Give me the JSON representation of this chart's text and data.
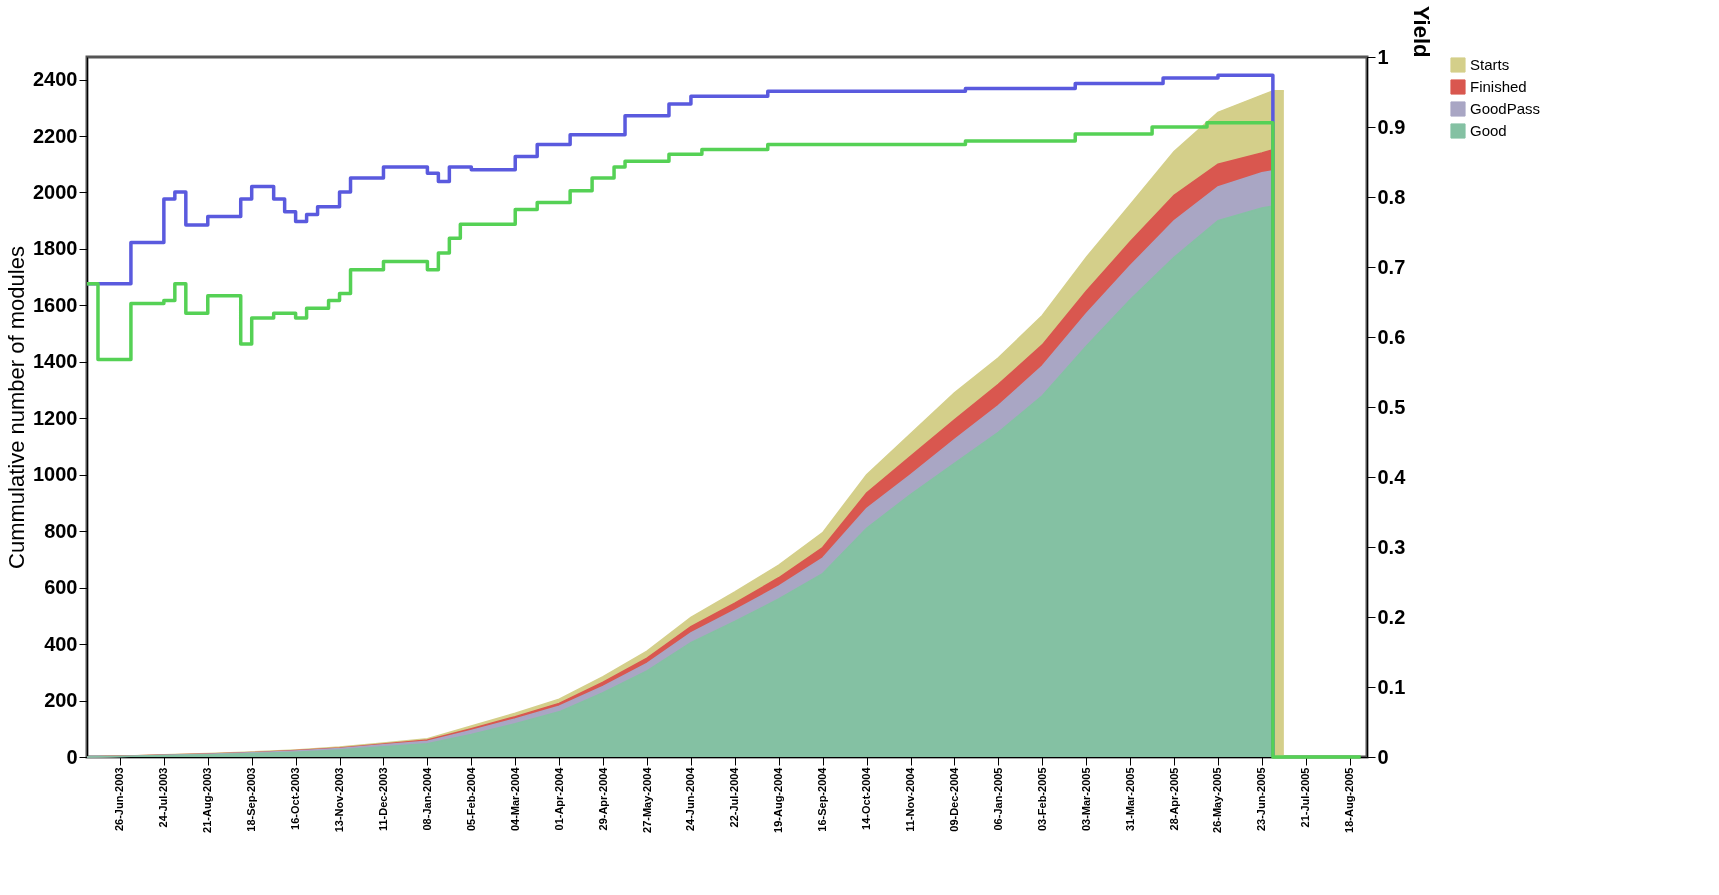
{
  "chart_data": {
    "type": "area",
    "ylabel": "Cummulative number of modules",
    "y2label": "Yield",
    "x": [
      "2003-06-05",
      "2003-06-26",
      "2003-07-24",
      "2003-08-21",
      "2003-09-18",
      "2003-10-16",
      "2003-11-13",
      "2003-12-11",
      "2004-01-08",
      "2004-02-05",
      "2004-03-04",
      "2004-04-01",
      "2004-04-29",
      "2004-05-27",
      "2004-06-24",
      "2004-07-22",
      "2004-08-19",
      "2004-09-16",
      "2004-10-14",
      "2004-11-11",
      "2004-12-09",
      "2005-01-06",
      "2005-02-03",
      "2005-03-03",
      "2005-03-31",
      "2005-04-28",
      "2005-05-26",
      "2005-06-23",
      "2005-06-30"
    ],
    "series": [
      {
        "name": "Starts",
        "color": "#d4cf8a",
        "x": [
          "2003-06-05",
          "2003-06-26",
          "2003-07-24",
          "2003-08-21",
          "2003-09-18",
          "2003-10-16",
          "2003-11-13",
          "2003-12-11",
          "2004-01-08",
          "2004-02-05",
          "2004-03-04",
          "2004-04-01",
          "2004-04-29",
          "2004-05-27",
          "2004-06-24",
          "2004-07-22",
          "2004-08-19",
          "2004-09-16",
          "2004-10-14",
          "2004-11-11",
          "2004-12-09",
          "2005-01-06",
          "2005-02-03",
          "2005-03-03",
          "2005-03-31",
          "2005-04-28",
          "2005-05-26",
          "2005-06-23",
          "2005-06-30",
          "2005-07-07"
        ],
        "values": [
          0,
          3,
          8,
          12,
          18,
          25,
          35,
          50,
          65,
          110,
          155,
          205,
          285,
          375,
          495,
          585,
          680,
          795,
          1000,
          1145,
          1290,
          1414,
          1564,
          1770,
          1957,
          2145,
          2284,
          2345,
          2360,
          2360
        ]
      },
      {
        "name": "Finished",
        "color": "#d9574f",
        "values": [
          0,
          3,
          7,
          11,
          16,
          23,
          32,
          46,
          60,
          100,
          143,
          190,
          265,
          350,
          462,
          545,
          635,
          742,
          935,
          1065,
          1195,
          1320,
          1460,
          1650,
          1825,
          1990,
          2100,
          2140,
          2151
        ]
      },
      {
        "name": "GoodPass",
        "color": "#a9a6c4",
        "values": [
          0,
          2,
          6,
          10,
          15,
          21,
          30,
          43,
          56,
          94,
          135,
          180,
          250,
          332,
          440,
          520,
          605,
          705,
          880,
          1000,
          1125,
          1245,
          1385,
          1570,
          1740,
          1900,
          2020,
          2070,
          2077
        ]
      },
      {
        "name": "Good",
        "color": "#84c1a3",
        "values": [
          0,
          2,
          5,
          8,
          12,
          17,
          25,
          36,
          47,
          80,
          118,
          160,
          228,
          305,
          405,
          480,
          560,
          650,
          810,
          930,
          1040,
          1150,
          1280,
          1455,
          1620,
          1770,
          1900,
          1945,
          1952
        ]
      },
      {
        "type": "step",
        "axis": "y2",
        "color": "#5a5ade",
        "x": [
          "2003-06-05",
          "2003-07-03",
          "2003-07-24",
          "2003-07-31",
          "2003-08-07",
          "2003-08-21",
          "2003-09-11",
          "2003-09-18",
          "2003-10-02",
          "2003-10-09",
          "2003-10-16",
          "2003-10-23",
          "2003-10-30",
          "2003-11-13",
          "2003-11-20",
          "2003-12-11",
          "2004-01-08",
          "2004-01-15",
          "2004-01-22",
          "2004-02-05",
          "2004-03-04",
          "2004-03-18",
          "2004-04-08",
          "2004-05-13",
          "2004-06-10",
          "2004-06-24",
          "2004-08-12",
          "2004-12-16",
          "2005-02-24",
          "2005-04-21",
          "2005-05-26",
          "2005-06-30"
        ],
        "values": [
          0.676,
          0.735,
          0.797,
          0.807,
          0.76,
          0.772,
          0.797,
          0.815,
          0.797,
          0.779,
          0.765,
          0.775,
          0.786,
          0.807,
          0.827,
          0.843,
          0.834,
          0.822,
          0.843,
          0.839,
          0.858,
          0.875,
          0.889,
          0.916,
          0.933,
          0.944,
          0.951,
          0.955,
          0.962,
          0.97,
          0.974,
          0
        ]
      },
      {
        "type": "step",
        "axis": "y2",
        "color": "#55d155",
        "x": [
          "2003-06-05",
          "2003-06-12",
          "2003-07-03",
          "2003-07-24",
          "2003-07-31",
          "2003-08-07",
          "2003-08-21",
          "2003-09-11",
          "2003-09-18",
          "2003-10-02",
          "2003-10-16",
          "2003-10-23",
          "2003-11-06",
          "2003-11-13",
          "2003-11-20",
          "2003-12-11",
          "2004-01-08",
          "2004-01-15",
          "2004-01-22",
          "2004-01-29",
          "2004-03-04",
          "2004-03-18",
          "2004-04-08",
          "2004-04-22",
          "2004-05-06",
          "2004-05-13",
          "2004-06-10",
          "2004-07-01",
          "2004-08-12",
          "2004-12-16",
          "2005-02-24",
          "2005-04-14",
          "2005-05-19",
          "2005-06-30",
          "2005-08-25"
        ],
        "values": [
          0.676,
          0.568,
          0.648,
          0.652,
          0.676,
          0.634,
          0.659,
          0.59,
          0.627,
          0.634,
          0.627,
          0.641,
          0.652,
          0.662,
          0.696,
          0.708,
          0.696,
          0.72,
          0.741,
          0.761,
          0.782,
          0.792,
          0.809,
          0.827,
          0.843,
          0.851,
          0.861,
          0.868,
          0.875,
          0.88,
          0.89,
          0.9,
          0.906,
          0,
          0
        ]
      }
    ],
    "xlim": [
      "2003-06-05",
      "2005-08-29"
    ],
    "xticks": [
      {
        "value": "2003-06-26",
        "label": "26-Jun-2003"
      },
      {
        "value": "2003-07-24",
        "label": "24-Jul-2003"
      },
      {
        "value": "2003-08-21",
        "label": "21-Aug-2003"
      },
      {
        "value": "2003-09-18",
        "label": "18-Sep-2003"
      },
      {
        "value": "2003-10-16",
        "label": "16-Oct-2003"
      },
      {
        "value": "2003-11-13",
        "label": "13-Nov-2003"
      },
      {
        "value": "2003-12-11",
        "label": "11-Dec-2003"
      },
      {
        "value": "2004-01-08",
        "label": "08-Jan-2004"
      },
      {
        "value": "2004-02-05",
        "label": "05-Feb-2004"
      },
      {
        "value": "2004-03-04",
        "label": "04-Mar-2004"
      },
      {
        "value": "2004-04-01",
        "label": "01-Apr-2004"
      },
      {
        "value": "2004-04-29",
        "label": "29-Apr-2004"
      },
      {
        "value": "2004-05-27",
        "label": "27-May-2004"
      },
      {
        "value": "2004-06-24",
        "label": "24-Jun-2004"
      },
      {
        "value": "2004-07-22",
        "label": "22-Jul-2004"
      },
      {
        "value": "2004-08-19",
        "label": "19-Aug-2004"
      },
      {
        "value": "2004-09-16",
        "label": "16-Sep-2004"
      },
      {
        "value": "2004-10-14",
        "label": "14-Oct-2004"
      },
      {
        "value": "2004-11-11",
        "label": "11-Nov-2004"
      },
      {
        "value": "2004-12-09",
        "label": "09-Dec-2004"
      },
      {
        "value": "2005-01-06",
        "label": "06-Jan-2005"
      },
      {
        "value": "2005-02-03",
        "label": "03-Feb-2005"
      },
      {
        "value": "2005-03-03",
        "label": "03-Mar-2005"
      },
      {
        "value": "2005-03-31",
        "label": "31-Mar-2005"
      },
      {
        "value": "2005-04-28",
        "label": "28-Apr-2005"
      },
      {
        "value": "2005-05-26",
        "label": "26-May-2005"
      },
      {
        "value": "2005-06-23",
        "label": "23-Jun-2005"
      },
      {
        "value": "2005-07-21",
        "label": "21-Jul-2005"
      },
      {
        "value": "2005-08-18",
        "label": "18-Aug-2005"
      }
    ],
    "ylim": [
      0,
      2480
    ],
    "yticks": [
      0,
      200,
      400,
      600,
      800,
      1000,
      1200,
      1400,
      1600,
      1800,
      2000,
      2200,
      2400
    ],
    "y2lim": [
      0,
      1
    ],
    "y2ticks": [
      0,
      0.1,
      0.2,
      0.3,
      0.4,
      0.5,
      0.6,
      0.7,
      0.8,
      0.9,
      1
    ],
    "grid": false,
    "legend": "top right"
  }
}
